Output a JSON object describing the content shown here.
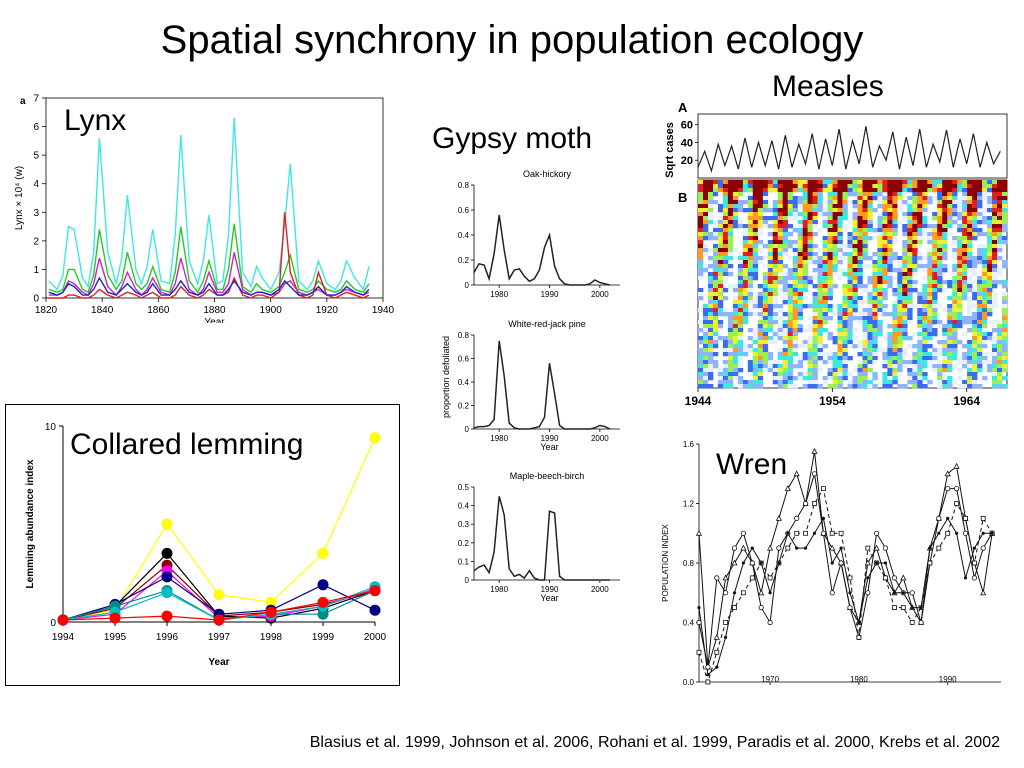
{
  "slide": {
    "title": "Spatial synchrony in population ecology",
    "citation": "Blasius et al. 1999, Johnson et al. 2006, Rohani et al. 1999, Paradis et al. 2000, Krebs et al. 2002"
  },
  "chart_data": [
    {
      "id": "lynx",
      "type": "line",
      "title": "Lynx",
      "panel_letter": "a",
      "xlabel": "Year",
      "ylabel": "Lynx × 10⁴ (w)",
      "xlim": [
        1820,
        1940
      ],
      "ylim": [
        0,
        7
      ],
      "xticks": [
        1820,
        1840,
        1860,
        1880,
        1900,
        1920,
        1940
      ],
      "yticks": [
        0,
        1,
        2,
        3,
        4,
        5,
        6,
        7
      ],
      "x": [
        1821,
        1824,
        1826,
        1828,
        1830,
        1833,
        1835,
        1837,
        1839,
        1842,
        1845,
        1847,
        1849,
        1852,
        1854,
        1856,
        1858,
        1861,
        1864,
        1866,
        1868,
        1871,
        1874,
        1876,
        1878,
        1881,
        1883,
        1885,
        1887,
        1890,
        1893,
        1895,
        1897,
        1900,
        1903,
        1905,
        1907,
        1910,
        1913,
        1915,
        1917,
        1920,
        1923,
        1925,
        1927,
        1930,
        1933,
        1935
      ],
      "series": [
        {
          "color": "#3ee8e0",
          "values": [
            0.6,
            0.3,
            0.8,
            2.5,
            2.4,
            0.7,
            0.4,
            1.6,
            5.6,
            1.6,
            0.5,
            1.4,
            3.6,
            1.0,
            0.5,
            1.1,
            2.4,
            0.6,
            0.5,
            2.2,
            5.7,
            1.3,
            0.5,
            1.3,
            2.9,
            0.5,
            0.6,
            2.2,
            6.3,
            0.9,
            0.4,
            1.1,
            0.7,
            0.3,
            0.9,
            2.6,
            4.7,
            0.6,
            0.3,
            0.6,
            1.3,
            0.5,
            0.3,
            0.6,
            1.3,
            0.7,
            0.3,
            1.1
          ]
        },
        {
          "color": "#22cc22",
          "values": [
            0.3,
            0.2,
            0.3,
            1.0,
            1.0,
            0.3,
            0.2,
            0.8,
            2.4,
            0.8,
            0.3,
            0.6,
            1.6,
            0.5,
            0.3,
            0.5,
            1.1,
            0.3,
            0.2,
            0.9,
            2.5,
            0.6,
            0.2,
            0.6,
            1.3,
            0.3,
            0.3,
            1.0,
            2.6,
            0.4,
            0.2,
            0.5,
            0.3,
            0.2,
            0.4,
            0.9,
            1.5,
            0.3,
            0.2,
            0.3,
            0.6,
            0.3,
            0.2,
            0.3,
            0.6,
            0.3,
            0.2,
            0.5
          ]
        },
        {
          "color": "#cc22cc",
          "values": [
            0.1,
            0.1,
            0.2,
            0.6,
            0.5,
            0.2,
            0.1,
            0.5,
            1.4,
            0.4,
            0.1,
            0.4,
            0.9,
            0.3,
            0.1,
            0.3,
            0.7,
            0.2,
            0.1,
            0.5,
            1.4,
            0.3,
            0.1,
            0.3,
            0.9,
            0.2,
            0.2,
            0.5,
            1.6,
            0.3,
            0.1,
            0.2,
            0.2,
            0.1,
            0.2,
            0.5,
            0.6,
            0.2,
            0.1,
            0.2,
            0.3,
            0.1,
            0.1,
            0.2,
            0.3,
            0.2,
            0.1,
            0.2
          ]
        },
        {
          "color": "#dd2222",
          "values": [
            0.0,
            0.0,
            0.0,
            0.1,
            0.1,
            0.0,
            0.0,
            0.1,
            0.3,
            0.1,
            0.0,
            0.1,
            0.2,
            0.1,
            0.0,
            0.1,
            0.2,
            0.0,
            0.0,
            0.1,
            0.4,
            0.1,
            0.0,
            0.1,
            0.3,
            0.1,
            0.1,
            0.2,
            0.7,
            0.1,
            0.0,
            0.1,
            0.1,
            0.0,
            0.2,
            3.0,
            0.9,
            0.1,
            0.0,
            0.1,
            0.9,
            0.1,
            0.0,
            0.1,
            0.2,
            0.1,
            0.0,
            0.1
          ]
        },
        {
          "color": "#2222cc",
          "values": [
            0.2,
            0.1,
            0.2,
            0.5,
            0.4,
            0.1,
            0.1,
            0.3,
            0.7,
            0.2,
            0.1,
            0.3,
            0.5,
            0.2,
            0.1,
            0.2,
            0.5,
            0.1,
            0.1,
            0.3,
            0.6,
            0.2,
            0.1,
            0.2,
            0.5,
            0.1,
            0.1,
            0.3,
            0.6,
            0.2,
            0.1,
            0.2,
            0.2,
            0.1,
            0.3,
            0.6,
            0.4,
            0.1,
            0.1,
            0.2,
            0.4,
            0.1,
            0.1,
            0.2,
            0.4,
            0.2,
            0.1,
            0.3
          ]
        }
      ]
    },
    {
      "id": "gypsy-moth",
      "type": "line",
      "title": "Gypsy moth",
      "ylabel": "proportion defoliated",
      "xlabel": "Year",
      "subpanels": [
        {
          "title": "Oak-hickory",
          "xlim": [
            1975,
            2004
          ],
          "ylim": [
            0,
            0.8
          ],
          "xticks": [
            1980,
            1990,
            2000
          ],
          "yticks": [
            0,
            0.2,
            0.4,
            0.6,
            0.8
          ],
          "ytick_labels": [
            "0",
            "0.2",
            "0.4",
            "0.6",
            "0.8"
          ],
          "show_xlabel": false,
          "x": [
            1975,
            1976,
            1977,
            1978,
            1979,
            1980,
            1981,
            1982,
            1983,
            1984,
            1985,
            1986,
            1987,
            1988,
            1989,
            1990,
            1991,
            1992,
            1993,
            1994,
            1995,
            1996,
            1997,
            1998,
            1999,
            2000,
            2001,
            2002
          ],
          "values": [
            0.1,
            0.17,
            0.16,
            0.05,
            0.25,
            0.56,
            0.28,
            0.05,
            0.12,
            0.13,
            0.07,
            0.03,
            0.05,
            0.12,
            0.3,
            0.4,
            0.15,
            0.05,
            0.01,
            0.0,
            0.0,
            0.0,
            0.0,
            0.01,
            0.04,
            0.02,
            0.01,
            0.0
          ]
        },
        {
          "title": "White-red-jack pine",
          "xlim": [
            1975,
            2004
          ],
          "ylim": [
            0,
            0.8
          ],
          "xticks": [
            1980,
            1990,
            2000
          ],
          "yticks": [
            0,
            0.2,
            0.4,
            0.6,
            0.8
          ],
          "ytick_labels": [
            "0",
            "0.2",
            "0.4",
            "0.6",
            "0.8"
          ],
          "show_xlabel": true,
          "x": [
            1975,
            1976,
            1977,
            1978,
            1979,
            1980,
            1981,
            1982,
            1983,
            1984,
            1985,
            1986,
            1987,
            1988,
            1989,
            1990,
            1991,
            1992,
            1993,
            1994,
            1995,
            1996,
            1997,
            1998,
            1999,
            2000,
            2001,
            2002
          ],
          "values": [
            0.01,
            0.02,
            0.02,
            0.03,
            0.08,
            0.75,
            0.45,
            0.05,
            0.01,
            0.0,
            0.0,
            0.0,
            0.01,
            0.02,
            0.1,
            0.56,
            0.3,
            0.03,
            0.0,
            0.0,
            0.0,
            0.0,
            0.0,
            0.0,
            0.01,
            0.03,
            0.02,
            0.0
          ]
        },
        {
          "title": "Maple-beech-birch",
          "xlim": [
            1975,
            2004
          ],
          "ylim": [
            0,
            0.5
          ],
          "xticks": [
            1980,
            1990,
            2000
          ],
          "yticks": [
            0,
            0.1,
            0.2,
            0.3,
            0.4,
            0.5
          ],
          "ytick_labels": [
            "0",
            "0.1",
            "0.2",
            "0.3",
            "0.4",
            "0.5"
          ],
          "show_xlabel": true,
          "x": [
            1975,
            1976,
            1977,
            1978,
            1979,
            1980,
            1981,
            1982,
            1983,
            1984,
            1985,
            1986,
            1987,
            1988,
            1989,
            1990,
            1991,
            1992,
            1993,
            1994,
            1995,
            1996,
            1997,
            1998,
            1999,
            2000,
            2001,
            2002
          ],
          "values": [
            0.05,
            0.07,
            0.08,
            0.04,
            0.15,
            0.45,
            0.35,
            0.06,
            0.02,
            0.03,
            0.01,
            0.05,
            0.01,
            0.0,
            0.0,
            0.37,
            0.36,
            0.02,
            0.0,
            0.0,
            0.0,
            0.0,
            0.0,
            0.0,
            0.0,
            0.0,
            0.0,
            0.0
          ]
        }
      ]
    },
    {
      "id": "measles",
      "type": "line",
      "title": "Measles",
      "panel_a_letter": "A",
      "panel_b_letter": "B",
      "ylabel": "Sqrt cases",
      "yticks": [
        20,
        40,
        60
      ],
      "ylim": [
        0,
        72
      ],
      "xlim": [
        1944,
        1967
      ],
      "xticks": [
        1944,
        1954,
        1964
      ],
      "x": [
        1944,
        1944.5,
        1945,
        1945.5,
        1946,
        1946.5,
        1947,
        1947.5,
        1948,
        1948.5,
        1949,
        1949.5,
        1950,
        1950.5,
        1951,
        1951.5,
        1952,
        1952.5,
        1953,
        1953.5,
        1954,
        1954.5,
        1955,
        1955.5,
        1956,
        1956.5,
        1957,
        1957.5,
        1958,
        1958.5,
        1959,
        1959.5,
        1960,
        1960.5,
        1961,
        1961.5,
        1962,
        1962.5,
        1963,
        1963.5,
        1964,
        1964.5,
        1965,
        1965.5,
        1966,
        1966.5
      ],
      "values": [
        12,
        30,
        8,
        38,
        14,
        36,
        10,
        45,
        12,
        40,
        14,
        42,
        10,
        48,
        12,
        38,
        16,
        50,
        10,
        44,
        14,
        55,
        10,
        42,
        16,
        58,
        12,
        36,
        20,
        52,
        10,
        46,
        14,
        55,
        12,
        38,
        18,
        54,
        12,
        44,
        16,
        50,
        12,
        40,
        16,
        30
      ]
    },
    {
      "id": "collared-lemming",
      "type": "line",
      "title": "Collared lemming",
      "xlabel": "Year",
      "ylabel": "Lemming abundance index",
      "categories": [
        "1994",
        "1995",
        "1996",
        "1997",
        "1998",
        "1999",
        "2000"
      ],
      "ylim": [
        0,
        10
      ],
      "yticks": [
        0,
        10
      ],
      "series": [
        {
          "color": "#ffff00",
          "values": [
            0.1,
            0.6,
            5.0,
            1.4,
            1.0,
            3.5,
            9.4
          ]
        },
        {
          "color": "#000000",
          "values": [
            0.1,
            0.8,
            3.5,
            0.3,
            0.2,
            0.7,
            1.6
          ]
        },
        {
          "color": "#8b0000",
          "values": [
            0.1,
            0.7,
            2.9,
            0.3,
            0.5,
            0.9,
            1.6
          ]
        },
        {
          "color": "#ff00ff",
          "values": [
            0.1,
            0.4,
            2.6,
            0.2,
            0.3,
            0.8,
            1.7
          ]
        },
        {
          "color": "#000080",
          "values": [
            0.1,
            0.9,
            2.3,
            0.4,
            0.6,
            1.9,
            0.6
          ]
        },
        {
          "color": "#008b8b",
          "values": [
            0.1,
            0.8,
            1.6,
            0.1,
            0.4,
            0.4,
            1.6
          ]
        },
        {
          "color": "#00bfbf",
          "values": [
            0.1,
            0.5,
            1.5,
            0.1,
            0.4,
            0.8,
            1.8
          ]
        },
        {
          "color": "#ff0000",
          "values": [
            0.1,
            0.2,
            0.3,
            0.1,
            0.5,
            1.0,
            1.6
          ]
        }
      ]
    },
    {
      "id": "wren",
      "type": "line",
      "title": "Wren",
      "ylabel": "POPULATION INDEX",
      "xlim": [
        1962,
        1996
      ],
      "ylim": [
        0,
        1.6
      ],
      "xticks": [
        1970,
        1980,
        1990
      ],
      "yticks": [
        0.0,
        0.4,
        0.8,
        1.2,
        1.6
      ],
      "ytick_labels": [
        "0.0",
        "0.4",
        "0.8",
        "1.2",
        "1.6"
      ],
      "x": [
        1962,
        1963,
        1964,
        1965,
        1966,
        1967,
        1968,
        1969,
        1970,
        1971,
        1972,
        1973,
        1974,
        1975,
        1976,
        1977,
        1978,
        1979,
        1980,
        1981,
        1982,
        1983,
        1984,
        1985,
        1986,
        1987,
        1988,
        1989,
        1990,
        1991,
        1992,
        1993,
        1994,
        1995
      ],
      "series": [
        {
          "marker": "triangle",
          "dash": "",
          "values": [
            1.0,
            0.1,
            0.3,
            0.7,
            0.8,
            0.9,
            0.8,
            0.6,
            0.9,
            1.1,
            1.3,
            1.4,
            1.2,
            1.55,
            1.0,
            0.9,
            0.8,
            0.5,
            0.4,
            0.8,
            0.9,
            0.7,
            0.6,
            0.7,
            0.5,
            0.4,
            0.9,
            1.1,
            1.4,
            1.45,
            1.1,
            0.8,
            0.6,
            1.0
          ]
        },
        {
          "marker": "circle",
          "dash": "",
          "values": [
            0.4,
            0.1,
            0.7,
            0.6,
            0.9,
            1.0,
            0.8,
            0.5,
            0.4,
            0.9,
            1.0,
            1.1,
            1.2,
            1.4,
            1.0,
            0.6,
            0.8,
            0.5,
            0.3,
            0.6,
            1.0,
            0.9,
            0.7,
            0.6,
            0.6,
            0.4,
            0.8,
            1.1,
            1.3,
            1.3,
            1.0,
            0.7,
            0.9,
            1.0
          ]
        },
        {
          "marker": "square",
          "dash": "4,3",
          "values": [
            0.2,
            0.0,
            0.2,
            0.4,
            0.5,
            0.6,
            0.7,
            0.8,
            0.7,
            0.8,
            0.9,
            1.0,
            1.0,
            1.2,
            1.3,
            1.0,
            1.0,
            0.7,
            0.3,
            0.9,
            0.8,
            0.7,
            0.5,
            0.5,
            0.4,
            0.5,
            0.8,
            0.9,
            1.0,
            1.2,
            1.1,
            0.8,
            1.1,
            1.0
          ]
        },
        {
          "marker": "dot",
          "dash": "",
          "values": [
            0.5,
            0.05,
            0.1,
            0.3,
            0.6,
            0.8,
            0.9,
            0.8,
            0.6,
            0.8,
            1.0,
            0.9,
            0.9,
            1.0,
            1.1,
            0.8,
            0.9,
            0.6,
            0.4,
            0.7,
            0.8,
            0.8,
            0.6,
            0.6,
            0.5,
            0.5,
            0.9,
            1.0,
            1.1,
            1.0,
            0.7,
            0.9,
            1.0,
            1.0
          ]
        }
      ]
    }
  ]
}
